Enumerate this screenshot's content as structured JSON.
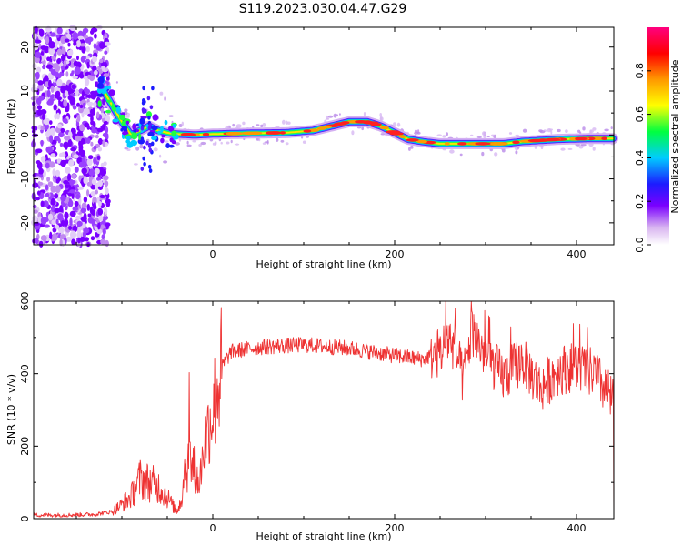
{
  "title": "S119.2023.030.04.47.G29",
  "chart_data": [
    {
      "type": "heatmap",
      "title": "S119.2023.030.04.47.G29",
      "xlabel": "Height of straight line (km)",
      "ylabel": "Frequency (Hz)",
      "xlim": [
        -197,
        441
      ],
      "ylim": [
        -25,
        24.5
      ],
      "x_ticks": [
        0,
        200,
        400
      ],
      "y_ticks": [
        -20,
        -10,
        0,
        10,
        20
      ],
      "colorbar": {
        "label": "Normalized spectral amplitude",
        "range": [
          0.0,
          1.0
        ],
        "ticks": [
          0.0,
          0.2,
          0.4,
          0.6,
          0.8
        ],
        "colormap": [
          "#ffffff",
          "#d8b4f0",
          "#7a00ff",
          "#1c1cff",
          "#00ccff",
          "#00ff40",
          "#ffff00",
          "#ff9900",
          "#ff0000",
          "#ff007f"
        ]
      },
      "ridge": {
        "x": [
          -120,
          -100,
          -90,
          -80,
          -70,
          -60,
          -50,
          -40,
          -20,
          0,
          40,
          80,
          110,
          130,
          150,
          170,
          185,
          200,
          215,
          230,
          250,
          280,
          320,
          340,
          380,
          420,
          441
        ],
        "y": [
          10,
          3,
          0,
          1,
          2,
          1,
          0.5,
          0.2,
          0,
          0.2,
          0.4,
          0.5,
          1,
          2,
          3,
          3,
          2,
          0.5,
          -1,
          -1.5,
          -2,
          -2,
          -2,
          -1.5,
          -1,
          -0.8,
          -0.8
        ]
      }
    },
    {
      "type": "line",
      "xlabel": "Height of straight line (km)",
      "ylabel": "SNR (10 * v/v)",
      "xlim": [
        -197,
        441
      ],
      "ylim": [
        0,
        600
      ],
      "x_ticks": [
        0,
        200,
        400
      ],
      "y_ticks": [
        0,
        200,
        400,
        600
      ],
      "color": "#ee3333",
      "envelope": {
        "x": [
          -197,
          -160,
          -130,
          -110,
          -90,
          -80,
          -70,
          -60,
          -50,
          -40,
          -35,
          -30,
          -25,
          -20,
          -15,
          -10,
          0,
          10,
          20,
          40,
          60,
          100,
          150,
          200,
          230,
          250,
          260,
          270,
          275,
          285,
          300,
          320,
          340,
          360,
          380,
          400,
          420,
          430,
          441
        ],
        "y": [
          10,
          10,
          12,
          20,
          60,
          110,
          100,
          90,
          60,
          20,
          50,
          150,
          160,
          130,
          90,
          200,
          300,
          420,
          460,
          470,
          475,
          480,
          470,
          450,
          440,
          460,
          500,
          440,
          380,
          520,
          450,
          390,
          440,
          360,
          410,
          420,
          400,
          360,
          320
        ]
      }
    }
  ]
}
